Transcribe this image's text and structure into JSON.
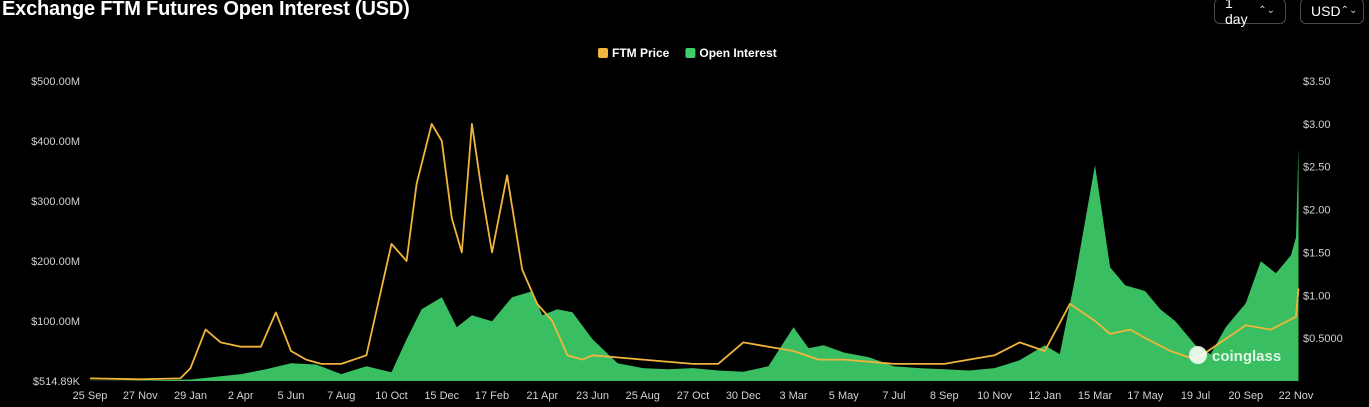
{
  "header": {
    "title": "Exchange FTM Futures Open Interest (USD)",
    "interval_value": "1 day",
    "currency_value": "USD",
    "chevron_glyph": "⌃⌄"
  },
  "watermark": {
    "text": "coinglass",
    "icon": "coinglass-logo-icon"
  },
  "colors": {
    "price": "#f0b53d",
    "open_interest": "#3ecf6a",
    "background": "#000000"
  },
  "chart_data": {
    "type": "line",
    "legend": [
      {
        "name": "FTM Price",
        "color": "#f0b53d"
      },
      {
        "name": "Open Interest",
        "color": "#3ecf6a"
      }
    ],
    "legend_position": "top-center",
    "x_ticks": [
      "25 Sep",
      "27 Nov",
      "29 Jan",
      "2 Apr",
      "5 Jun",
      "7 Aug",
      "10 Oct",
      "15 Dec",
      "17 Feb",
      "21 Apr",
      "23 Jun",
      "25 Aug",
      "27 Oct",
      "30 Dec",
      "3 Mar",
      "5 May",
      "7 Jul",
      "8 Sep",
      "10 Nov",
      "12 Jan",
      "15 Mar",
      "17 May",
      "19 Jul",
      "20 Sep",
      "22 Nov"
    ],
    "y_left": {
      "ticks": [
        "$514.89K",
        "$100.00M",
        "$200.00M",
        "$300.00M",
        "$400.00M",
        "$500.00M"
      ],
      "tick_values": [
        0.51489,
        100,
        200,
        300,
        400,
        500
      ],
      "unit": "M USD",
      "range": [
        0.51489,
        500
      ]
    },
    "y_right": {
      "ticks": [
        "$0.5000",
        "$1.00",
        "$1.50",
        "$2.00",
        "$2.50",
        "$3.00",
        "$3.50"
      ],
      "tick_values": [
        0.5,
        1.0,
        1.5,
        2.0,
        2.5,
        3.0,
        3.5
      ],
      "range": [
        0,
        3.5
      ]
    },
    "series": [
      {
        "name": "Open Interest",
        "type": "area",
        "axis": "left",
        "x": [
          0,
          1,
          2,
          3,
          3.5,
          4,
          4.5,
          5,
          5.5,
          6,
          6.3,
          6.6,
          7,
          7.3,
          7.6,
          8,
          8.4,
          8.8,
          9,
          9.3,
          9.6,
          10,
          10.5,
          11,
          11.5,
          12,
          12.5,
          13,
          13.5,
          14,
          14.3,
          14.6,
          15,
          15.5,
          16,
          16.5,
          17,
          17.5,
          18,
          18.5,
          19,
          19.3,
          19.6,
          20,
          20.3,
          20.6,
          21,
          21.3,
          21.6,
          22,
          22.3,
          22.6,
          23,
          23.3,
          23.6,
          23.9,
          24,
          24.05
        ],
        "values": [
          1,
          1,
          3,
          12,
          20,
          30,
          28,
          12,
          25,
          15,
          70,
          120,
          140,
          90,
          110,
          100,
          140,
          150,
          110,
          120,
          115,
          70,
          30,
          22,
          20,
          22,
          18,
          16,
          25,
          90,
          55,
          60,
          48,
          40,
          25,
          22,
          20,
          18,
          22,
          35,
          60,
          45,
          170,
          360,
          190,
          160,
          150,
          120,
          100,
          60,
          45,
          90,
          130,
          200,
          180,
          210,
          240,
          390
        ]
      },
      {
        "name": "FTM Price",
        "type": "line",
        "axis": "right",
        "x": [
          0,
          1,
          1.8,
          2,
          2.3,
          2.6,
          3,
          3.4,
          3.7,
          4,
          4.3,
          4.6,
          5,
          5.5,
          6,
          6.3,
          6.5,
          6.8,
          7,
          7.2,
          7.4,
          7.6,
          7.8,
          8,
          8.3,
          8.6,
          8.9,
          9.2,
          9.5,
          9.8,
          10,
          11,
          12,
          12.5,
          13,
          13.5,
          14,
          14.5,
          15,
          16,
          17,
          18,
          18.5,
          19,
          19.5,
          20,
          20.3,
          20.7,
          21,
          21.5,
          22,
          22.5,
          23,
          23.5,
          24,
          24.05
        ],
        "values": [
          0.03,
          0.02,
          0.03,
          0.15,
          0.6,
          0.45,
          0.4,
          0.4,
          0.8,
          0.35,
          0.25,
          0.2,
          0.2,
          0.3,
          1.6,
          1.4,
          2.3,
          3.0,
          2.8,
          1.9,
          1.5,
          3.0,
          2.2,
          1.5,
          2.4,
          1.3,
          0.9,
          0.7,
          0.3,
          0.25,
          0.3,
          0.25,
          0.2,
          0.2,
          0.45,
          0.4,
          0.35,
          0.25,
          0.25,
          0.2,
          0.2,
          0.3,
          0.45,
          0.35,
          0.9,
          0.7,
          0.55,
          0.6,
          0.5,
          0.35,
          0.25,
          0.45,
          0.65,
          0.6,
          0.75,
          1.08
        ]
      }
    ]
  }
}
